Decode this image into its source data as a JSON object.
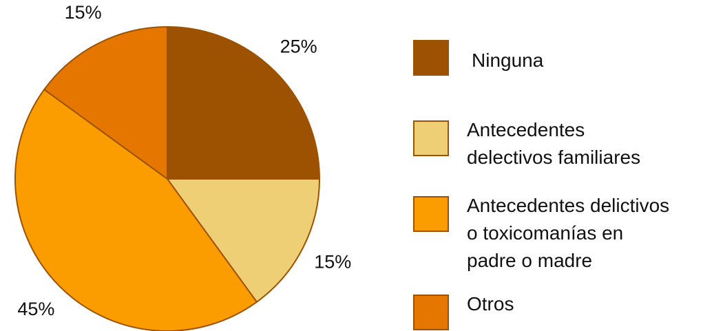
{
  "chart_data": {
    "type": "pie",
    "categories": [
      "Ninguna",
      "Antecedentes\ndelectivos familiares",
      "Antecedentes delictivos\no toxicomanías en\npadre o madre",
      "Otros"
    ],
    "values": [
      25,
      15,
      45,
      15
    ],
    "value_labels": [
      "25%",
      "15%",
      "45%",
      "15%"
    ],
    "colors": [
      "#9c5200",
      "#eecf75",
      "#fb9c00",
      "#e57600"
    ]
  }
}
